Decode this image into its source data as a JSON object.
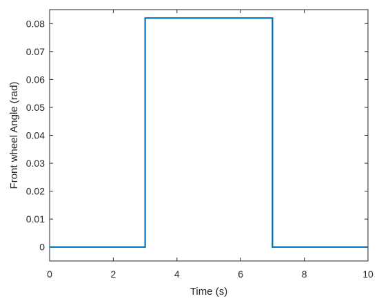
{
  "chart_data": {
    "type": "line",
    "title": "",
    "xlabel": "Time (s)",
    "ylabel": "Front wheel Angle (rad)",
    "xlim": [
      0,
      10
    ],
    "ylim": [
      -0.005,
      0.085
    ],
    "xticks": [
      0,
      2,
      4,
      6,
      8,
      10
    ],
    "xtick_labels": [
      "0",
      "2",
      "4",
      "6",
      "8",
      "10"
    ],
    "yticks": [
      0,
      0.01,
      0.02,
      0.03,
      0.04,
      0.05,
      0.06,
      0.07,
      0.08
    ],
    "ytick_labels": [
      "0",
      "0.01",
      "0.02",
      "0.03",
      "0.04",
      "0.05",
      "0.06",
      "0.07",
      "0.08"
    ],
    "grid": false,
    "series": [
      {
        "color": "#0072BD",
        "x": [
          0,
          3,
          3,
          7,
          7,
          10
        ],
        "y": [
          0,
          0,
          0.082,
          0.082,
          0,
          0
        ]
      }
    ]
  }
}
